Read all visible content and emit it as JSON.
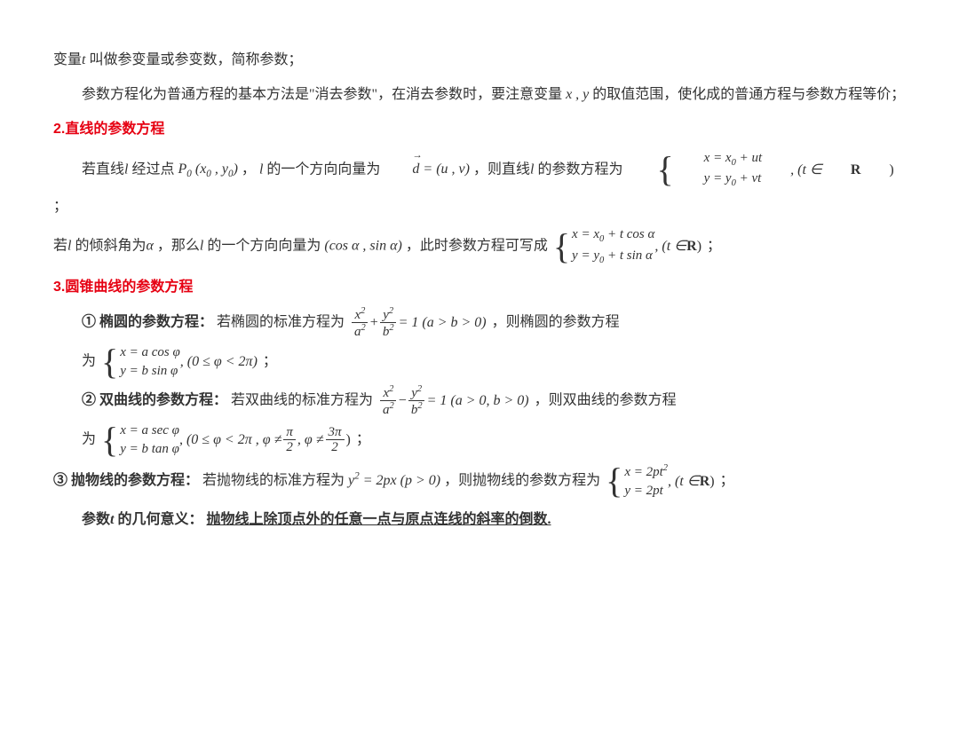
{
  "p1": "变量",
  "p1b": "叫做参变量或参变数，简称参数；",
  "p2": "参数方程化为普通方程的基本方法是\"消去参数\"，在消去参数时，要注意变量",
  "p2b": "的取值范围，使化成的普通方程与参数方程等价；",
  "h2": "2.直线的参数方程",
  "p3a": "若直线",
  "p3b": "经过点",
  "p3c": "，",
  "p3d": "的一个方向向量为",
  "p3e": "，则直线",
  "p3f": "的参数方程为",
  "p3g": "；",
  "p4a": "若",
  "p4b": "的倾斜角为",
  "p4c": "，那么",
  "p4d": "的一个方向向量为",
  "p4e": "，此时参数方程可写成",
  "p4f": "；",
  "h3": "3.圆锥曲线的参数方程",
  "s1a": "① 椭圆的参数方程：",
  "s1b": "若椭圆的标准方程为",
  "s1c": "，则椭圆的参数方程",
  "s1d": "为",
  "s1e": "；",
  "s2a": "② 双曲线的参数方程：",
  "s2b": "若双曲线的标准方程为",
  "s2c": "，则双曲线的参数方程",
  "s2d": "为",
  "s2e": "；",
  "s3a": "③ 抛物线的参数方程：",
  "s3b": "若抛物线的标准方程为",
  "s3c": "，则抛物线的参数方程为",
  "s3d": "；",
  "foot_a": "参数",
  "foot_b": "的几何意义：",
  "foot_c": "抛物线上除顶点外的任意一点与原点连线的斜率的倒数.",
  "sym": {
    "t": "t",
    "l": "l",
    "xy": "x , y",
    "alpha": "α",
    "phi": "φ",
    "P0": "P",
    "zero": "0",
    "x0": "x",
    "y0": "y",
    "duv": "(u , v)",
    "d": "d",
    "xut": "x = x",
    "yvt": "y = y",
    "plus_ut": " + ut",
    "plus_vt": " + vt",
    "tR": ", (t ∈ ",
    "Rset": "R",
    "close": ")",
    "cossin": "(cos α , sin α)",
    "xcos": " + t cos α",
    "ysin": " + t sin α",
    "ell_lhs_x": "x",
    "ell_lhs_y": "y",
    "sq": "2",
    "a": "a",
    "b": "b",
    "eq1ab": "= 1 (a > b > 0)",
    "xac": "x = a cos φ",
    "ybs": "y = b sin φ",
    "phirange": ", (0 ≤ φ < 2π)",
    "eq1a0b0": "= 1 (a > 0, b > 0)",
    "xas": "x = a sec φ",
    "ybt": "y = b tan φ",
    "hyprange_a": ", (0 ≤ φ < 2π , φ ≠ ",
    "pi": "π",
    "half2": "2",
    "three_pi": "3π",
    "neq": " , φ ≠ ",
    "para_eq": "y",
    "eq_2px": " = 2px",
    "pgt0": "   (p > 0)",
    "x2pt2": "x = 2pt",
    "y2pt": "y = 2pt"
  }
}
